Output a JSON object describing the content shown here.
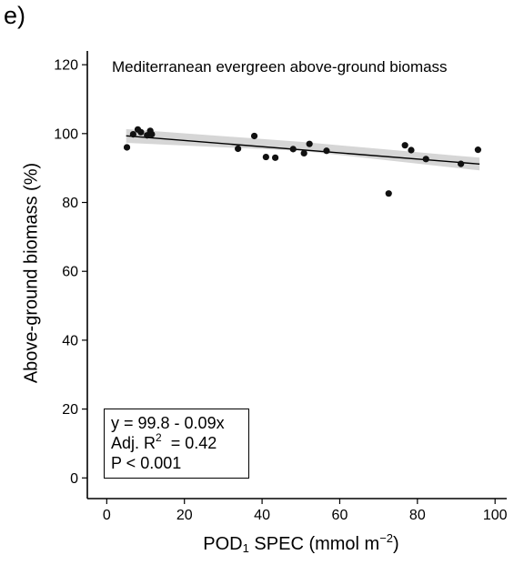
{
  "panel_label": "e)",
  "chart_data": {
    "type": "scatter",
    "title": "Mediterranean evergreen above-ground biomass",
    "xlabel": {
      "prefix": "POD",
      "sub": "1",
      "middle": " SPEC (mmol m",
      "sup": "−2",
      "suffix": ")"
    },
    "ylabel": "Above-ground biomass (%)",
    "xlim": [
      -5,
      103
    ],
    "ylim": [
      -6,
      124
    ],
    "xticks": [
      0,
      20,
      40,
      60,
      80,
      100
    ],
    "yticks": [
      0,
      20,
      40,
      60,
      80,
      100,
      120
    ],
    "grid": false,
    "points": [
      {
        "x": 5.2,
        "y": 96.0
      },
      {
        "x": 6.8,
        "y": 99.8
      },
      {
        "x": 8.0,
        "y": 101.2
      },
      {
        "x": 8.8,
        "y": 100.4
      },
      {
        "x": 10.4,
        "y": 99.5
      },
      {
        "x": 11.2,
        "y": 100.8
      },
      {
        "x": 11.6,
        "y": 99.8
      },
      {
        "x": 33.8,
        "y": 95.6
      },
      {
        "x": 38.0,
        "y": 99.3
      },
      {
        "x": 41.0,
        "y": 93.2
      },
      {
        "x": 43.4,
        "y": 93.0
      },
      {
        "x": 48.0,
        "y": 95.5
      },
      {
        "x": 50.8,
        "y": 94.3
      },
      {
        "x": 52.2,
        "y": 97.0
      },
      {
        "x": 56.6,
        "y": 95.0
      },
      {
        "x": 72.6,
        "y": 82.6
      },
      {
        "x": 76.8,
        "y": 96.6
      },
      {
        "x": 78.4,
        "y": 95.2
      },
      {
        "x": 82.2,
        "y": 92.6
      },
      {
        "x": 91.2,
        "y": 91.2
      },
      {
        "x": 95.6,
        "y": 95.3
      }
    ],
    "fit": {
      "intercept": 99.8,
      "slope": -0.09,
      "x_range": [
        5,
        96
      ],
      "ci_lower": [
        [
          5,
          97.3
        ],
        [
          50,
          95.0
        ],
        [
          96,
          89.3
        ]
      ],
      "ci_upper": [
        [
          5,
          101.3
        ],
        [
          50,
          97.6
        ],
        [
          96,
          93.0
        ]
      ]
    },
    "colors": {
      "points": "#111111",
      "line": "#000000",
      "band": "#d6d6d6"
    },
    "annotations": {
      "equation": "y = 99.8 - 0.09x",
      "r2_prefix": "Adj. R",
      "r2_sup": "2",
      "r2_suffix": "  = 0.42",
      "p_value": "P < 0.001"
    }
  }
}
